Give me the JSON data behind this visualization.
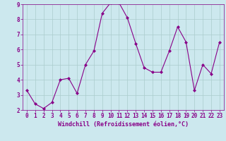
{
  "x": [
    0,
    1,
    2,
    3,
    4,
    5,
    6,
    7,
    8,
    9,
    10,
    11,
    12,
    13,
    14,
    15,
    16,
    17,
    18,
    19,
    20,
    21,
    22,
    23
  ],
  "y": [
    3.3,
    2.4,
    2.1,
    2.5,
    4.0,
    4.1,
    3.1,
    5.0,
    5.9,
    8.4,
    9.1,
    9.1,
    8.1,
    6.4,
    4.8,
    4.5,
    4.5,
    5.9,
    7.5,
    6.5,
    3.3,
    5.0,
    4.4,
    6.5
  ],
  "line_color": "#880088",
  "marker": "D",
  "marker_size": 2.0,
  "background_color": "#cce8ee",
  "grid_color": "#aacccc",
  "xlabel": "Windchill (Refroidissement éolien,°C)",
  "xlabel_color": "#880088",
  "tick_color": "#880088",
  "ylim": [
    2,
    9
  ],
  "xlim": [
    -0.5,
    23.5
  ],
  "yticks": [
    2,
    3,
    4,
    5,
    6,
    7,
    8,
    9
  ],
  "xticks": [
    0,
    1,
    2,
    3,
    4,
    5,
    6,
    7,
    8,
    9,
    10,
    11,
    12,
    13,
    14,
    15,
    16,
    17,
    18,
    19,
    20,
    21,
    22,
    23
  ],
  "tick_fontsize": 5.5,
  "xlabel_fontsize": 6.0,
  "linewidth": 0.8
}
